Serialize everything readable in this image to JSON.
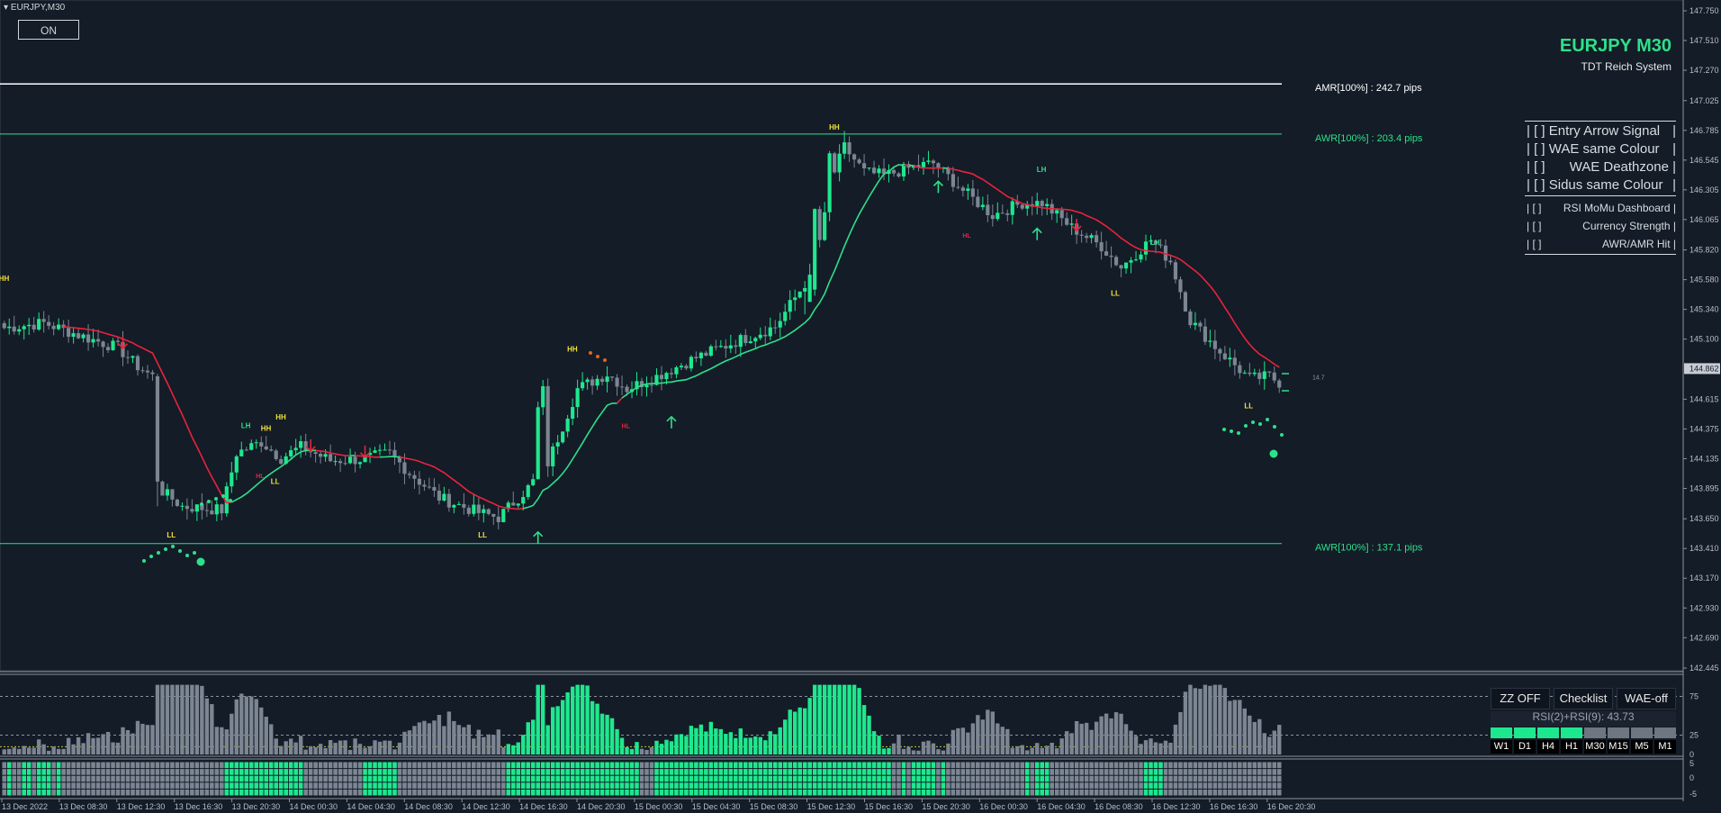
{
  "window": {
    "symbol_label": "EURJPY,M30",
    "on_button_label": "ON"
  },
  "header": {
    "title": "EURJPY M30",
    "subtitle": "TDT Reich System"
  },
  "toggle_panel": {
    "items": [
      {
        "label": "[ ] Entry Arrow Signal",
        "size": "large"
      },
      {
        "label": "[ ] WAE same Colour",
        "size": "large"
      },
      {
        "label": "[ ]",
        "extra": "WAE Deathzone",
        "size": "large"
      },
      {
        "label": "[ ] Sidus same Colour",
        "size": "large"
      },
      {
        "label": "[ ]",
        "extra": "RSI MoMu Dashboard",
        "size": "small"
      },
      {
        "label": "[ ]",
        "extra": "Currency Strength",
        "size": "small"
      },
      {
        "label": "[ ]",
        "extra": "AWR/AMR Hit",
        "size": "small"
      }
    ]
  },
  "dashboard": {
    "buttons": [
      "ZZ OFF",
      "Checklist",
      "WAE-off"
    ],
    "rsi_readout": "RSI(2)+RSI(9):  43.73",
    "timeframes": [
      "W1",
      "D1",
      "H4",
      "H1",
      "M30",
      "M15",
      "M5",
      "M1"
    ],
    "timeframe_states": [
      "bull",
      "bull",
      "bull",
      "bull",
      "neutral",
      "neutral",
      "neutral",
      "neutral"
    ]
  },
  "colors": {
    "background": "#131c27",
    "bull_candle": "#1ee88e",
    "bear_candle": "#7c8592",
    "ma_down": "#e8233c",
    "ma_up": "#2ee08a",
    "label_yellow": "#f3e33a",
    "label_green": "#2ee08a",
    "label_red": "#e8233c"
  },
  "chart_data": {
    "type": "candlestick",
    "price_axis": {
      "labels": [
        "147.750",
        "147.510",
        "147.270",
        "147.025",
        "146.785",
        "146.545",
        "146.305",
        "146.065",
        "145.820",
        "145.580",
        "145.340",
        "145.100",
        "144.615",
        "144.375",
        "144.135",
        "143.895",
        "143.650",
        "143.410",
        "143.170",
        "142.930",
        "142.690",
        "142.445"
      ],
      "current_price_label": "144.862",
      "min": 142.445,
      "max": 147.75
    },
    "time_axis": {
      "labels": [
        "13 Dec 2022",
        "13 Dec 08:30",
        "13 Dec 12:30",
        "13 Dec 16:30",
        "13 Dec 20:30",
        "14 Dec 00:30",
        "14 Dec 04:30",
        "14 Dec 08:30",
        "14 Dec 12:30",
        "14 Dec 16:30",
        "14 Dec 20:30",
        "15 Dec 00:30",
        "15 Dec 04:30",
        "15 Dec 08:30",
        "15 Dec 12:30",
        "15 Dec 16:30",
        "15 Dec 20:30",
        "16 Dec 00:30",
        "16 Dec 04:30",
        "16 Dec 08:30",
        "16 Dec 12:30",
        "16 Dec 16:30",
        "16 Dec 20:30"
      ]
    },
    "levels": [
      {
        "name": "AMR",
        "label": "AMR[100%] : 242.7 pips",
        "price": 147.16,
        "color": "#ffffff"
      },
      {
        "name": "AWR-high",
        "label": "AWR[100%] : 203.4 pips",
        "price": 146.755,
        "color": "#2ee08a"
      },
      {
        "name": "AWR-low",
        "label": "AWR[100%] : 137.1 pips",
        "price": 143.45,
        "color": "#2ee08a"
      }
    ],
    "side_value_label": "14.7",
    "swing_labels": [
      {
        "text": "HH",
        "i": 0,
        "price": 145.57,
        "color": "yellow"
      },
      {
        "text": "LL",
        "i": 34,
        "price": 143.5,
        "color": "yellow"
      },
      {
        "text": "LH",
        "i": 49,
        "price": 144.38,
        "color": "green"
      },
      {
        "text": "HH",
        "i": 53,
        "price": 144.36,
        "color": "yellow"
      },
      {
        "text": "HL",
        "i": 52,
        "price": 143.98,
        "color": "red"
      },
      {
        "text": "LL",
        "i": 55,
        "price": 143.93,
        "color": "yellow"
      },
      {
        "text": "HH",
        "i": 56,
        "price": 144.45,
        "color": "yellow"
      },
      {
        "text": "LL",
        "i": 97,
        "price": 143.5,
        "color": "yellow"
      },
      {
        "text": "HH",
        "i": 115,
        "price": 145.0,
        "color": "yellow"
      },
      {
        "text": "HL",
        "i": 126,
        "price": 144.38,
        "color": "red"
      },
      {
        "text": "HH",
        "i": 168,
        "price": 146.79,
        "color": "yellow"
      },
      {
        "text": "HL",
        "i": 195,
        "price": 145.92,
        "color": "red"
      },
      {
        "text": "LH",
        "i": 210,
        "price": 146.45,
        "color": "green"
      },
      {
        "text": "LL",
        "i": 225,
        "price": 145.45,
        "color": "yellow"
      },
      {
        "text": "LH",
        "i": 233,
        "price": 145.86,
        "color": "green"
      },
      {
        "text": "LL",
        "i": 252,
        "price": 144.54,
        "color": "yellow"
      }
    ],
    "arrows": [
      {
        "dir": "down",
        "i": 24,
        "price": 145.07
      },
      {
        "dir": "down",
        "i": 62,
        "price": 144.24
      },
      {
        "dir": "down",
        "i": 73,
        "price": 144.19
      },
      {
        "dir": "up",
        "i": 108,
        "price": 143.5
      },
      {
        "dir": "up",
        "i": 135,
        "price": 144.43
      },
      {
        "dir": "up",
        "i": 189,
        "price": 146.33
      },
      {
        "dir": "up",
        "i": 209,
        "price": 145.95
      },
      {
        "dir": "down",
        "i": 217,
        "price": 146.02
      }
    ],
    "lower_panels": {
      "wae_axis_labels": [
        "75",
        "25",
        "0"
      ],
      "bars_axis_labels": [
        "5",
        "0",
        "-5"
      ]
    }
  }
}
